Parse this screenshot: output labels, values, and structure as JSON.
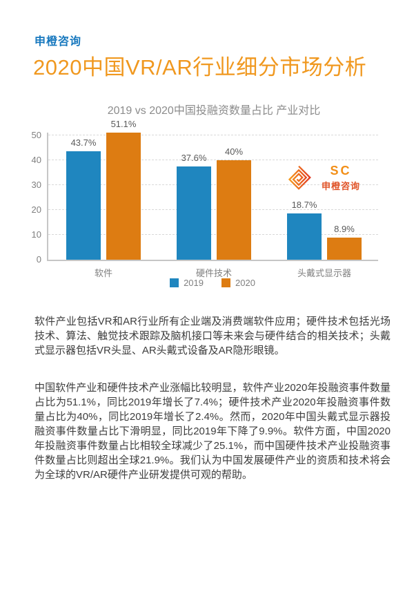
{
  "page": {
    "brand": "申橙咨询",
    "title": "2020中国VR/AR行业细分市场分析"
  },
  "chart_data": {
    "type": "bar",
    "title": "2019 vs 2020中国投融资数量占比 产业对比",
    "categories": [
      "软件",
      "硬件技术",
      "头戴式显示器"
    ],
    "series": [
      {
        "name": "2019",
        "color": "#1F86BF",
        "values": [
          43.7,
          37.6,
          18.7
        ],
        "labels": [
          "43.7%",
          "37.6%",
          "18.7%"
        ]
      },
      {
        "name": "2020",
        "color": "#DD7C12",
        "values": [
          51.1,
          40,
          8.9
        ],
        "labels": [
          "51.1%",
          "40%",
          "8.9%"
        ]
      }
    ],
    "ylim": [
      0,
      52
    ],
    "yticks": [
      0,
      10,
      20,
      30,
      40,
      50
    ],
    "grid": "horizontal-dashed",
    "legend_position": "bottom-center"
  },
  "logo": {
    "monogram": "SC",
    "name": "申橙咨询"
  },
  "paragraphs": [
    "软件产业包括VR和AR行业所有企业端及消费端软件应用；硬件技术包括光场技术、算法、触觉技术跟踪及脑机接口等未来会与硬件结合的相关技术；头戴式显示器包括VR头显、AR头戴式设备及AR隐形眼镜。",
    "中国软件产业和硬件技术产业涨幅比较明显，软件产业2020年投融资事件数量占比为51.1%，同比2019年增长了7.4%；硬件技术产业2020年投融资事件数量占比为40%，同比2019年增长了2.4%。然而，2020年中国头戴式显示器投融资事件数量占比下滑明显，同比2019年下降了9.9%。软件方面，中国2020年投融资事件数量占比相较全球减少了25.1%，而中国硬件技术产业投融资事件数量占比则超出全球21.9%。我们认为中国发展硬件产业的资质和技术将会为全球的VR/AR硬件产业研发提供可观的帮助。"
  ],
  "colors": {
    "brand_blue": "#1778BE",
    "title_orange": "#F0981F",
    "bar_2019": "#1F86BF",
    "bar_2020": "#DD7C12",
    "axis_gray": "#C6C6C6",
    "logo_red": "#E05327"
  }
}
